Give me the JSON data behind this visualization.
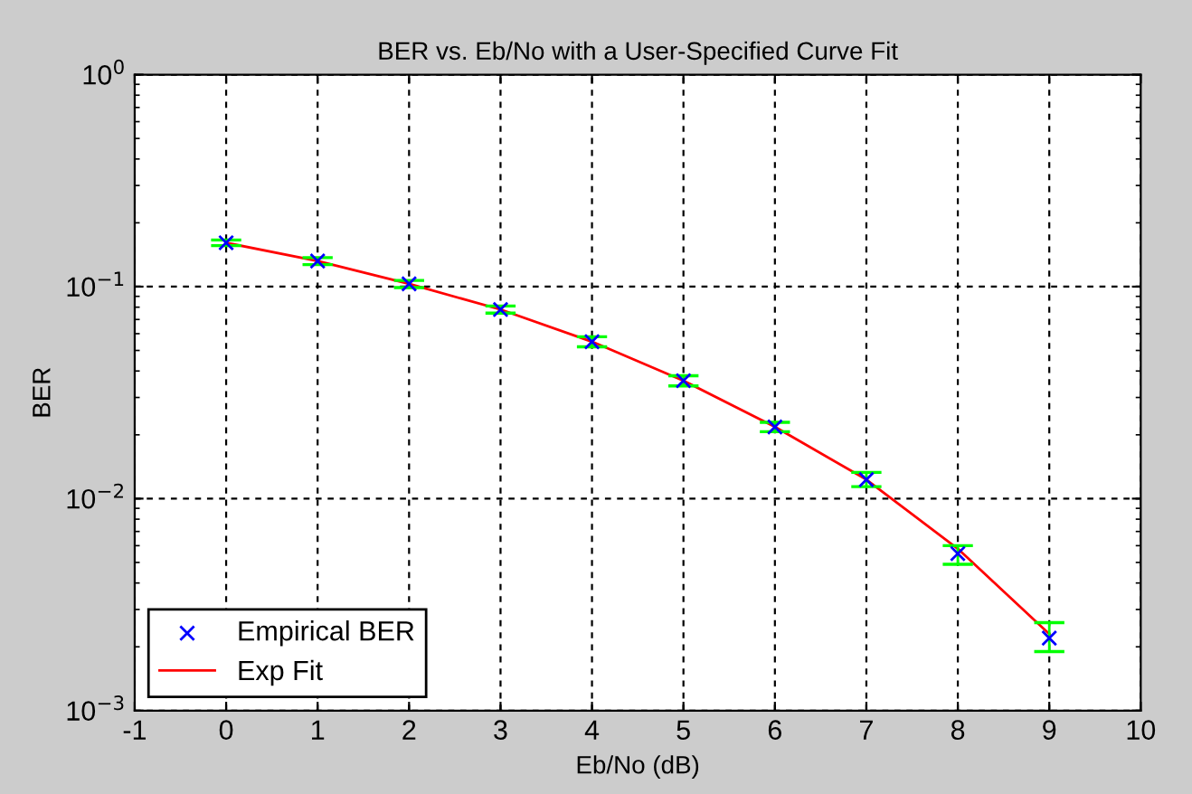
{
  "chart_data": {
    "type": "scatter",
    "title": "BER vs. Eb/No with a User-Specified Curve Fit",
    "xlabel": "Eb/No (dB)",
    "ylabel": "BER",
    "log": "y",
    "grid": true,
    "legend": "bottom left",
    "xlim": [
      -1,
      10
    ],
    "xticks": [
      -1,
      0,
      1,
      2,
      3,
      4,
      5,
      6,
      7,
      8,
      9,
      10
    ],
    "ylim": [
      0.001,
      1
    ],
    "yticks": [
      {
        "value": 0.001,
        "label": "10$^{−3}$"
      },
      {
        "value": 0.01,
        "label": "10$^{−2}$"
      },
      {
        "value": 0.1,
        "label": "10$^{−1}$"
      },
      {
        "value": 1,
        "label": "10$^{0}$"
      }
    ],
    "series": [
      {
        "name": "Empirical BER",
        "marker": "cross",
        "color": "#0000ff",
        "x": [
          0,
          1,
          2,
          3,
          4,
          5,
          6,
          7,
          8,
          9
        ],
        "values": [
          0.161,
          0.132,
          0.103,
          0.078,
          0.055,
          0.036,
          0.0218,
          0.0123,
          0.0055,
          0.0022
        ],
        "errors": [
          [
            0.156,
            0.166
          ],
          [
            0.127,
            0.137
          ],
          [
            0.099,
            0.107
          ],
          [
            0.075,
            0.081
          ],
          [
            0.052,
            0.058
          ],
          [
            0.034,
            0.038
          ],
          [
            0.0207,
            0.0229
          ],
          [
            0.0114,
            0.0133
          ],
          [
            0.0049,
            0.006
          ],
          [
            0.0019,
            0.0026
          ]
        ]
      },
      {
        "name": "Exp Fit",
        "type": "line",
        "marker": "none",
        "line_style": "solid",
        "color": "#ff0000",
        "x": [
          0,
          1,
          2,
          3,
          4,
          5,
          6,
          7,
          8,
          9
        ],
        "values": [
          0.161,
          0.132,
          0.103,
          0.078,
          0.055,
          0.036,
          0.0218,
          0.0123,
          0.0058,
          0.0023
        ]
      }
    ]
  }
}
